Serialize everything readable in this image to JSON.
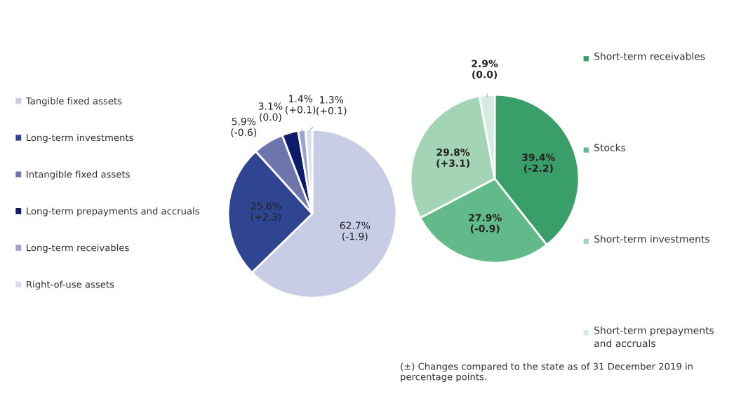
{
  "chart_data": [
    {
      "type": "pie",
      "categories": [
        "Tangible fixed assets",
        "Long-term investments",
        "Intangible fixed assets",
        "Long-term prepayments and accruals",
        "Long-term receivables",
        "Right-of-use assets"
      ],
      "values": [
        62.7,
        25.6,
        5.9,
        3.1,
        1.4,
        1.3
      ],
      "colors": [
        "#c8cce4",
        "#2f4592",
        "#6c76ad",
        "#0d1b6b",
        "#9aa2cf",
        "#d9dcec"
      ],
      "value_labels": [
        "62.7%\n(-1.9)",
        "25.6%\n(+2.3)",
        "5.9%\n(-0.6)",
        "3.1%\n(0.0)",
        "1.4%\n(+0.1)",
        "1.3%\n(+0.1)"
      ],
      "legend": "left"
    },
    {
      "type": "pie",
      "categories": [
        "Short-term receivables",
        "Stocks",
        "Short-term investments",
        "Short-term prepayments and accruals"
      ],
      "values": [
        39.4,
        27.9,
        29.8,
        2.9
      ],
      "colors": [
        "#3a9e68",
        "#62b989",
        "#a3d4b5",
        "#d6ece0"
      ],
      "value_labels": [
        "39.4%\n(-2.2)",
        "27.9%\n(-0.9)",
        "29.8%\n(+3.1)",
        "2.9%\n(0.0)"
      ],
      "legend": "right",
      "annotations": [
        "(±) Changes compared to the state as of 31 December 2019 in percentage points."
      ]
    }
  ]
}
